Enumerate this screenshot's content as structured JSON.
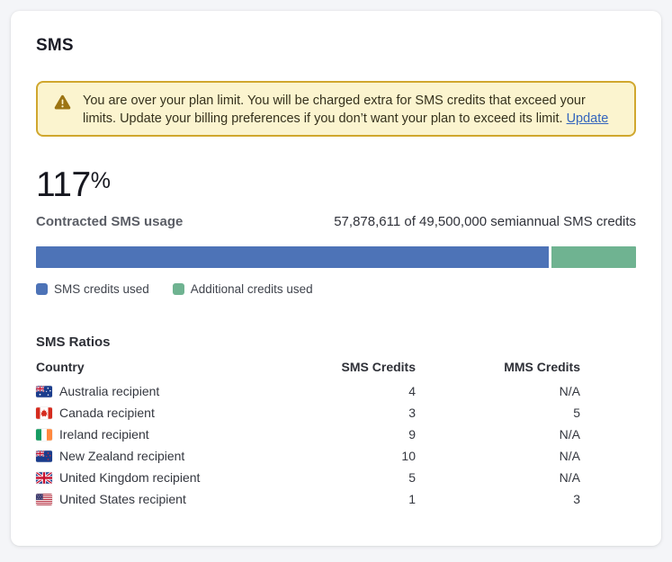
{
  "page_title": "SMS",
  "warning": {
    "text": "You are over your plan limit. You will be charged extra for SMS credits that exceed your limits. Update your billing preferences if you don’t want your plan to exceed its limit.",
    "link_label": "Update",
    "background_color": "#fbf4cf",
    "border_color": "#d0a72e",
    "icon": "warning-triangle-icon",
    "icon_color": "#9c7412"
  },
  "usage": {
    "percent": "117",
    "percent_symbol": "%",
    "label": "Contracted SMS usage",
    "detail": "57,878,611 of 49,500,000 semiannual SMS credits",
    "credits_used": 57878611,
    "credits_contracted": 49500000,
    "bar": {
      "sms_color": "#4d73b7",
      "additional_color": "#6fb391",
      "sms_segment_percent": 85.5
    }
  },
  "legend": [
    {
      "label": "SMS credits used",
      "color": "#4d73b7"
    },
    {
      "label": "Additional credits used",
      "color": "#6fb391"
    }
  ],
  "ratios": {
    "title": "SMS Ratios",
    "columns": [
      "Country",
      "SMS Credits",
      "MMS Credits"
    ],
    "rows": [
      {
        "flag_icon": "flag-australia-icon",
        "country": "Australia recipient",
        "sms": "4",
        "mms": "N/A"
      },
      {
        "flag_icon": "flag-canada-icon",
        "country": "Canada recipient",
        "sms": "3",
        "mms": "5"
      },
      {
        "flag_icon": "flag-ireland-icon",
        "country": "Ireland recipient",
        "sms": "9",
        "mms": "N/A"
      },
      {
        "flag_icon": "flag-new-zealand-icon",
        "country": "New Zealand recipient",
        "sms": "10",
        "mms": "N/A"
      },
      {
        "flag_icon": "flag-united-kingdom-icon",
        "country": "United Kingdom recipient",
        "sms": "5",
        "mms": "N/A"
      },
      {
        "flag_icon": "flag-united-states-icon",
        "country": "United States recipient",
        "sms": "1",
        "mms": "3"
      }
    ]
  }
}
